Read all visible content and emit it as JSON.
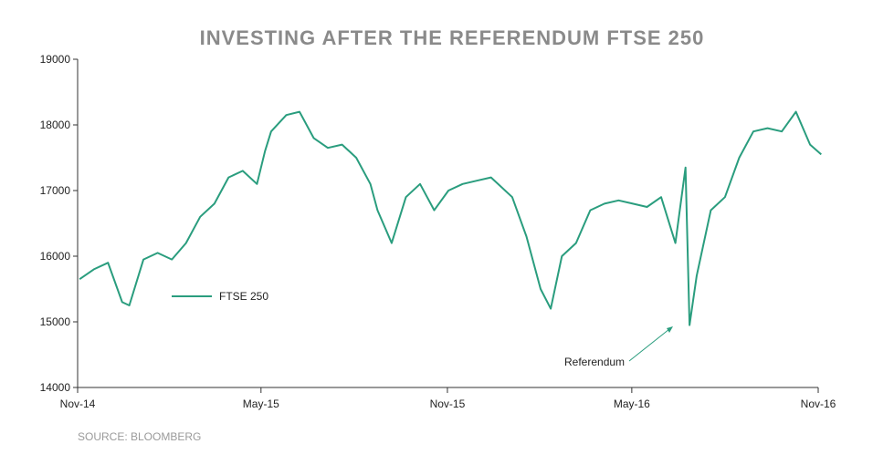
{
  "colors": {
    "series": "#2a9d7e",
    "text": "#222222",
    "title": "#8a8a8a",
    "source": "#9a9a9a"
  },
  "chart_data": {
    "type": "line",
    "title": "INVESTING AFTER THE REFERENDUM FTSE 250",
    "xlabel": "",
    "ylabel": "",
    "ylim": [
      14000,
      19000
    ],
    "yticks": [
      "19000",
      "18000",
      "17000",
      "16000",
      "15000",
      "14000"
    ],
    "xlim": [
      "2014-11",
      "2016-11"
    ],
    "xticks": [
      "Nov-14",
      "May-15",
      "Nov-15",
      "May-16",
      "Nov-16"
    ],
    "grid": false,
    "legend_position": "left",
    "source": "SOURCE: BLOOMBERG",
    "annotation": {
      "text": "Referendum"
    },
    "series": [
      {
        "name": "FTSE 250",
        "x": [
          "2014-11-03",
          "2014-11-17",
          "2014-12-01",
          "2014-12-15",
          "2014-12-22",
          "2015-01-05",
          "2015-01-19",
          "2015-02-02",
          "2015-02-16",
          "2015-03-02",
          "2015-03-16",
          "2015-03-30",
          "2015-04-13",
          "2015-04-27",
          "2015-05-05",
          "2015-05-11",
          "2015-05-26",
          "2015-06-08",
          "2015-06-22",
          "2015-07-06",
          "2015-07-20",
          "2015-08-03",
          "2015-08-17",
          "2015-08-24",
          "2015-09-07",
          "2015-09-21",
          "2015-10-05",
          "2015-10-19",
          "2015-11-02",
          "2015-11-16",
          "2015-11-30",
          "2015-12-14",
          "2016-01-04",
          "2016-01-18",
          "2016-02-01",
          "2016-02-11",
          "2016-02-22",
          "2016-03-07",
          "2016-03-21",
          "2016-04-04",
          "2016-04-18",
          "2016-05-02",
          "2016-05-16",
          "2016-05-30",
          "2016-06-13",
          "2016-06-23",
          "2016-06-27",
          "2016-07-04",
          "2016-07-18",
          "2016-08-01",
          "2016-08-15",
          "2016-08-29",
          "2016-09-12",
          "2016-09-26",
          "2016-10-10",
          "2016-10-24",
          "2016-11-04"
        ],
        "values": [
          15650,
          15800,
          15900,
          15300,
          15250,
          15950,
          16050,
          15950,
          16200,
          16600,
          16800,
          17200,
          17300,
          17100,
          17600,
          17900,
          18150,
          18200,
          17800,
          17650,
          17700,
          17500,
          17100,
          16700,
          16200,
          16900,
          17100,
          16700,
          17000,
          17100,
          17150,
          17200,
          16900,
          16300,
          15500,
          15200,
          16000,
          16200,
          16700,
          16800,
          16850,
          16800,
          16750,
          16900,
          16200,
          17350,
          14950,
          15700,
          16700,
          16900,
          17500,
          17900,
          17950,
          17900,
          18200,
          17700,
          17550
        ]
      }
    ]
  },
  "legend": {
    "label": "FTSE 250"
  }
}
